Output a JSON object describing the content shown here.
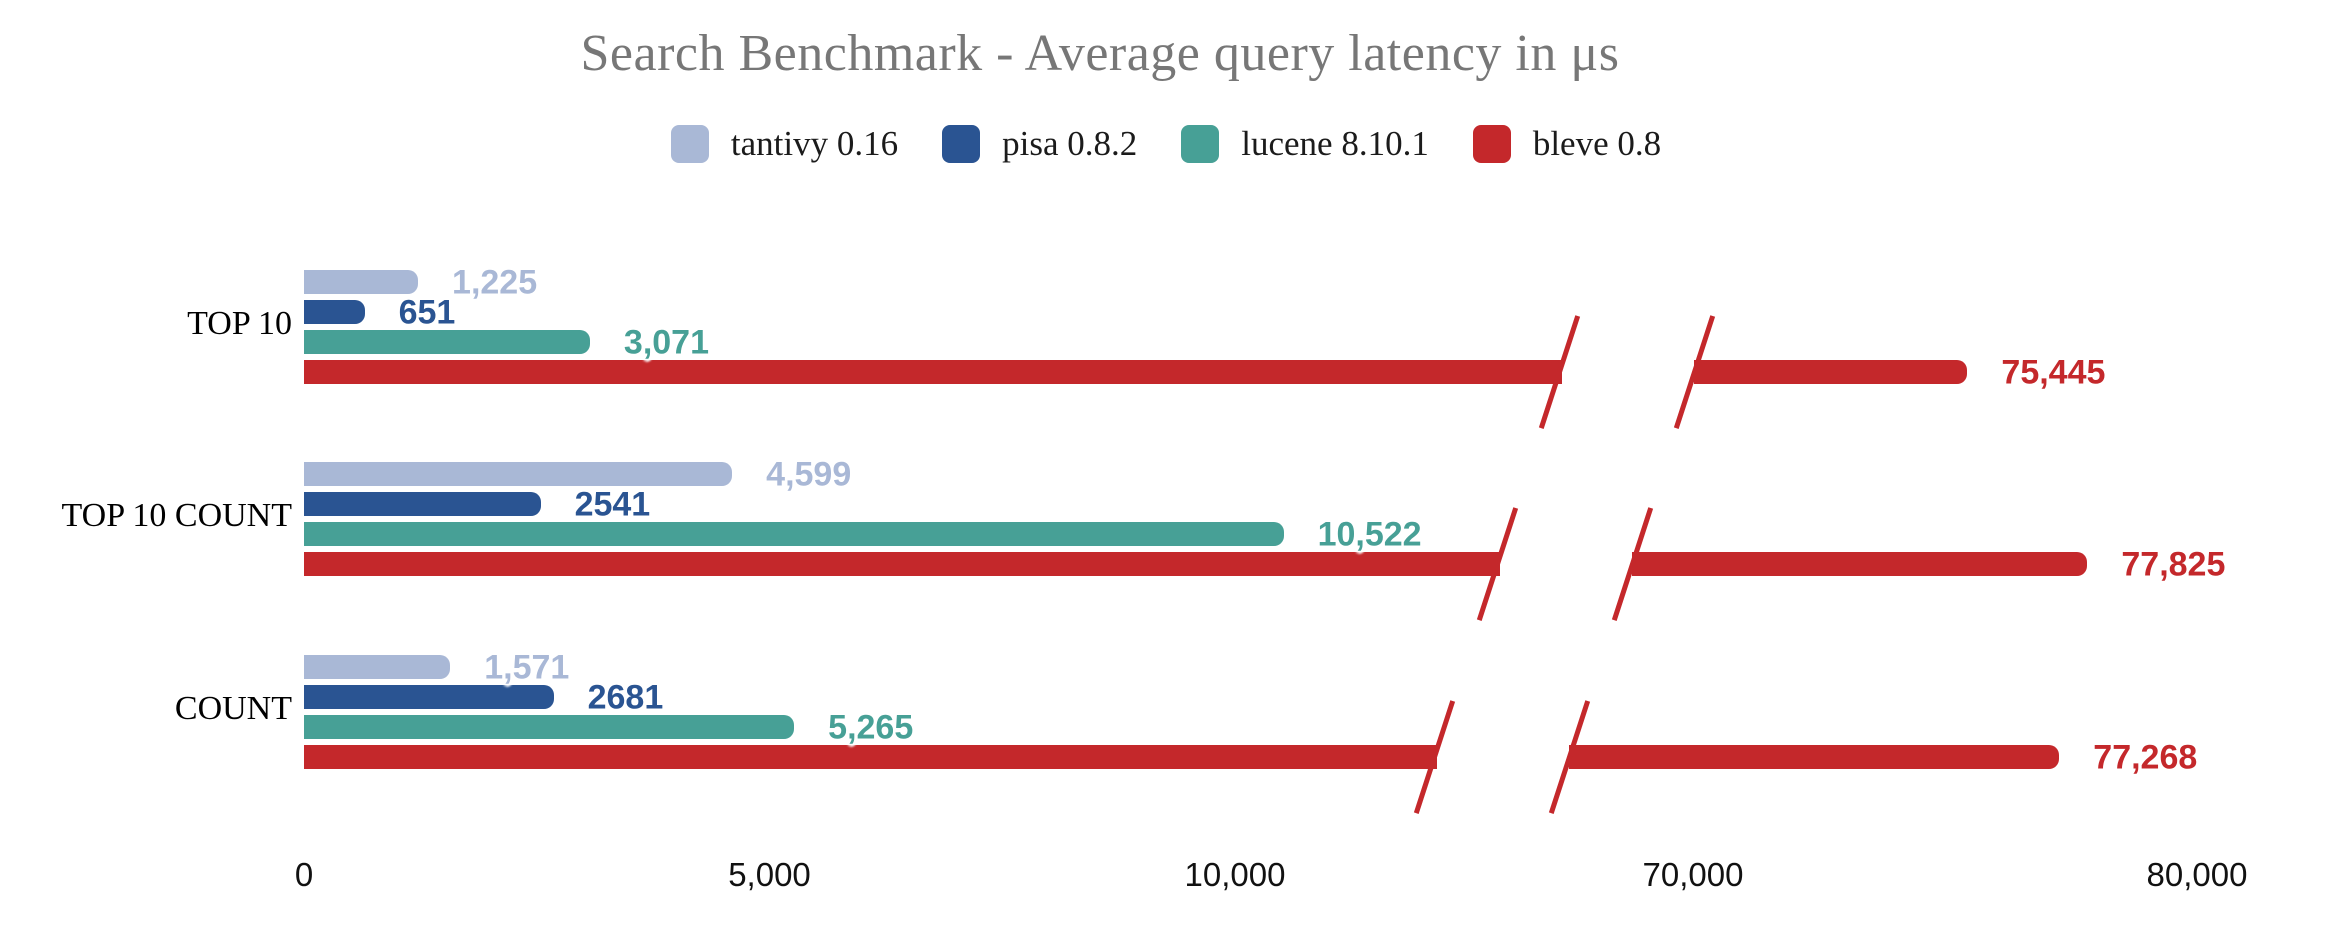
{
  "title": "Search Benchmark - Average query latency in μs",
  "colors": {
    "tantivy": "#a9b8d6",
    "pisa": "#2a5492",
    "lucene": "#47a096",
    "bleve": "#c4282b",
    "title_text": "#777777",
    "category_text": "#000000",
    "tick_text": "#111111"
  },
  "legend": {
    "position": "top-center",
    "items": [
      {
        "label": "tantivy 0.16",
        "color": "#a9b8d6"
      },
      {
        "label": "pisa 0.8.2",
        "color": "#2a5492"
      },
      {
        "label": "lucene 8.10.1",
        "color": "#47a096"
      },
      {
        "label": "bleve 0.8",
        "color": "#c4282b"
      }
    ]
  },
  "chart_data": {
    "type": "bar",
    "orientation": "horizontal",
    "title": "Search Benchmark - Average query latency in μs",
    "unit": "μs",
    "grid": false,
    "background": "#ffffff",
    "categories": [
      "TOP 10",
      "TOP 10 COUNT",
      "COUNT"
    ],
    "series": [
      {
        "name": "tantivy 0.16",
        "color": "#a9b8d6",
        "values": [
          1225,
          4599,
          1571
        ],
        "display": [
          "1,225",
          "4,599",
          "1,571"
        ]
      },
      {
        "name": "pisa 0.8.2",
        "color": "#2a5492",
        "values": [
          651,
          2541,
          2681
        ],
        "display": [
          "651",
          "2541",
          "2681"
        ]
      },
      {
        "name": "lucene 8.10.1",
        "color": "#47a096",
        "values": [
          3071,
          10522,
          5265
        ],
        "display": [
          "3,071",
          "10,522",
          "5,265"
        ]
      },
      {
        "name": "bleve 0.8",
        "color": "#c4282b",
        "values": [
          75445,
          77825,
          77268
        ],
        "display": [
          "75,445",
          "77,825",
          "77,268"
        ]
      }
    ],
    "x_axis": {
      "broken": true,
      "break_between": [
        13500,
        68500
      ],
      "ticks": [
        {
          "value": 0,
          "label": "0"
        },
        {
          "value": 5000,
          "label": "5,000"
        },
        {
          "value": 10000,
          "label": "10,000"
        },
        {
          "value": 70000,
          "label": "70,000"
        },
        {
          "value": 80000,
          "label": "80,000"
        }
      ]
    }
  }
}
